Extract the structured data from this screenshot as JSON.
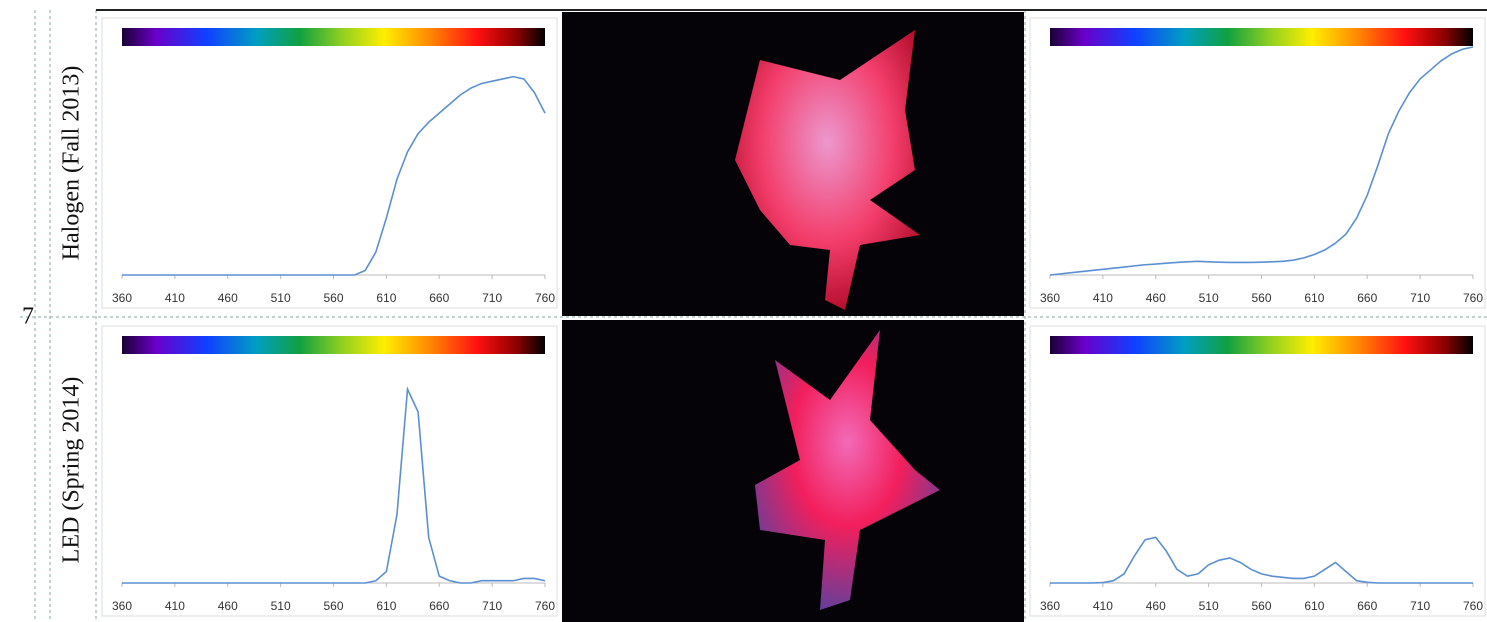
{
  "row_number": "7",
  "rows": [
    {
      "label": "Halogen (Fall 2013)"
    },
    {
      "label": "LED (Spring 2014)"
    }
  ],
  "chart_data": [
    {
      "type": "line",
      "color": "#5b8fd4",
      "x": [
        360,
        370,
        380,
        390,
        400,
        410,
        420,
        430,
        440,
        450,
        460,
        470,
        480,
        490,
        500,
        510,
        520,
        530,
        540,
        550,
        560,
        570,
        580,
        590,
        600,
        610,
        620,
        630,
        640,
        650,
        660,
        670,
        680,
        690,
        700,
        710,
        720,
        730,
        740,
        750,
        760
      ],
      "values": [
        0,
        0,
        0,
        0,
        0,
        0,
        0,
        0,
        0,
        0,
        0,
        0,
        0,
        0,
        0,
        0,
        0,
        0,
        0,
        0,
        0,
        0,
        0,
        0.02,
        0.1,
        0.25,
        0.42,
        0.54,
        0.62,
        0.67,
        0.71,
        0.75,
        0.79,
        0.82,
        0.84,
        0.85,
        0.86,
        0.87,
        0.86,
        0.8,
        0.71
      ],
      "xlim": [
        360,
        760
      ],
      "ylim": [
        0,
        1
      ],
      "xticks": [
        360,
        410,
        460,
        510,
        560,
        610,
        660,
        710,
        760
      ]
    },
    {
      "type": "line",
      "color": "#5b8fd4",
      "x": [
        360,
        370,
        380,
        390,
        400,
        410,
        420,
        430,
        440,
        450,
        460,
        470,
        480,
        490,
        500,
        510,
        520,
        530,
        540,
        550,
        560,
        570,
        580,
        590,
        600,
        610,
        620,
        630,
        640,
        650,
        660,
        670,
        680,
        690,
        700,
        710,
        720,
        730,
        740,
        750,
        760
      ],
      "values": [
        0,
        0,
        0,
        0,
        0,
        0,
        0,
        0,
        0,
        0,
        0,
        0,
        0,
        0,
        0,
        0,
        0,
        0,
        0,
        0,
        0,
        0,
        0,
        0,
        0.01,
        0.05,
        0.3,
        0.85,
        0.75,
        0.2,
        0.03,
        0.01,
        0,
        0,
        0.01,
        0.01,
        0.01,
        0.01,
        0.02,
        0.02,
        0.01
      ],
      "xlim": [
        360,
        760
      ],
      "ylim": [
        0,
        1
      ],
      "xticks": [
        360,
        410,
        460,
        510,
        560,
        610,
        660,
        710,
        760
      ]
    },
    {
      "type": "line",
      "color": "#5b8fd4",
      "x": [
        360,
        370,
        380,
        390,
        400,
        410,
        420,
        430,
        440,
        450,
        460,
        470,
        480,
        490,
        500,
        510,
        520,
        530,
        540,
        550,
        560,
        570,
        580,
        590,
        600,
        610,
        620,
        630,
        640,
        650,
        660,
        670,
        680,
        690,
        700,
        710,
        720,
        730,
        740,
        750,
        760
      ],
      "values": [
        0,
        0.005,
        0.01,
        0.015,
        0.02,
        0.025,
        0.03,
        0.035,
        0.04,
        0.045,
        0.048,
        0.052,
        0.055,
        0.058,
        0.06,
        0.058,
        0.056,
        0.055,
        0.055,
        0.055,
        0.056,
        0.058,
        0.06,
        0.065,
        0.075,
        0.09,
        0.11,
        0.14,
        0.18,
        0.25,
        0.35,
        0.48,
        0.62,
        0.72,
        0.8,
        0.86,
        0.9,
        0.94,
        0.97,
        0.99,
        1.0
      ],
      "xlim": [
        360,
        760
      ],
      "ylim": [
        0,
        1
      ],
      "xticks": [
        360,
        410,
        460,
        510,
        560,
        610,
        660,
        710,
        760
      ]
    },
    {
      "type": "line",
      "color": "#5b8fd4",
      "x": [
        360,
        370,
        380,
        390,
        400,
        410,
        420,
        430,
        440,
        450,
        460,
        470,
        480,
        490,
        500,
        510,
        520,
        530,
        540,
        550,
        560,
        570,
        580,
        590,
        600,
        610,
        620,
        630,
        640,
        650,
        660,
        670,
        680,
        690,
        700,
        710,
        720,
        730,
        740,
        750,
        760
      ],
      "values": [
        0,
        0,
        0,
        0,
        0,
        0.002,
        0.01,
        0.04,
        0.12,
        0.19,
        0.2,
        0.14,
        0.06,
        0.03,
        0.04,
        0.08,
        0.1,
        0.11,
        0.09,
        0.06,
        0.04,
        0.03,
        0.025,
        0.02,
        0.02,
        0.03,
        0.06,
        0.09,
        0.05,
        0.01,
        0.003,
        0,
        0,
        0,
        0,
        0,
        0,
        0,
        0,
        0,
        0
      ],
      "xlim": [
        360,
        760
      ],
      "ylim": [
        0,
        1
      ],
      "xticks": [
        360,
        410,
        460,
        510,
        560,
        610,
        660,
        710,
        760
      ]
    }
  ]
}
